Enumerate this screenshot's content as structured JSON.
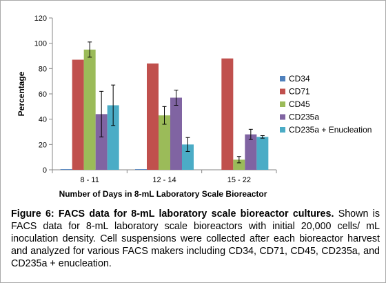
{
  "chart_data": {
    "type": "bar",
    "categories": [
      "8 - 11",
      "12 - 14",
      "15 - 22"
    ],
    "series": [
      {
        "name": "CD34",
        "color": "#4f81bd",
        "values": [
          0.5,
          0.5,
          0
        ],
        "errors": [
          0,
          0,
          0
        ]
      },
      {
        "name": "CD71",
        "color": "#c0504d",
        "values": [
          87,
          84,
          88
        ],
        "errors": [
          0,
          0,
          0
        ]
      },
      {
        "name": "CD45",
        "color": "#9bbb59",
        "values": [
          95,
          43,
          8
        ],
        "errors": [
          6,
          7,
          2.5
        ]
      },
      {
        "name": "CD235a",
        "color": "#8064a2",
        "values": [
          44,
          57,
          28
        ],
        "errors": [
          18,
          6,
          4
        ]
      },
      {
        "name": "CD235a + Enucleation",
        "color": "#4bacc6",
        "values": [
          51,
          20,
          26
        ],
        "errors": [
          16,
          5.5,
          1
        ]
      }
    ],
    "title": "",
    "xlabel": "Number of Days in 8-mL Laboratory Scale Bioreactor",
    "ylabel": "Percentage",
    "ylim": [
      0,
      120
    ],
    "yticks": [
      0,
      20,
      40,
      60,
      80,
      100,
      120
    ],
    "grid": false,
    "legend": "right"
  },
  "caption": {
    "bold": "Figure 6: FACS data for 8-mL laboratory scale bioreactor cultures.",
    "text": " Shown is FACS data for 8-mL laboratory scale bioreactors with initial 20,000 cells/ mL inoculation density.  Cell suspensions were collected after each bioreactor harvest and analyzed for various FACS makers including CD34, CD71, CD45, CD235a, and CD235a + enucleation."
  }
}
